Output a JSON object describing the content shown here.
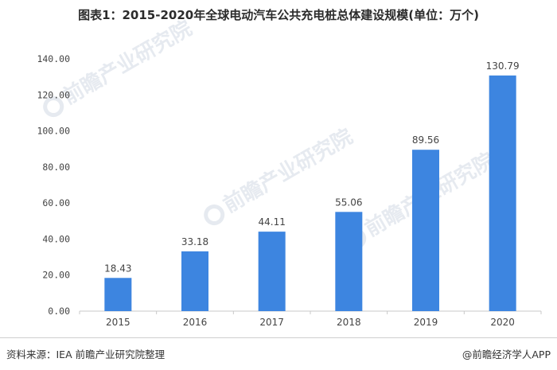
{
  "title": "图表1：2015-2020年全球电动汽车公共充电桩总体建设规模(单位：万个)",
  "source": "资料来源：IEA 前瞻产业研究院整理",
  "brand": "@前瞻经济学人APP",
  "watermark": "前瞻产业研究院",
  "colors": {
    "bar": "#3d85e0",
    "axis": "#c8c8c8",
    "text": "#444444"
  },
  "chart_data": {
    "type": "bar",
    "categories": [
      "2015",
      "2016",
      "2017",
      "2018",
      "2019",
      "2020"
    ],
    "values": [
      18.43,
      33.18,
      44.11,
      55.06,
      89.56,
      130.79
    ],
    "data_labels": [
      "18.43",
      "33.18",
      "44.11",
      "55.06",
      "89.56",
      "130.79"
    ],
    "yticks": [
      "0.00",
      "20.00",
      "40.00",
      "60.00",
      "80.00",
      "100.00",
      "120.00",
      "140.00"
    ],
    "ylim": [
      0,
      140
    ],
    "grid": false,
    "legend": "none"
  }
}
